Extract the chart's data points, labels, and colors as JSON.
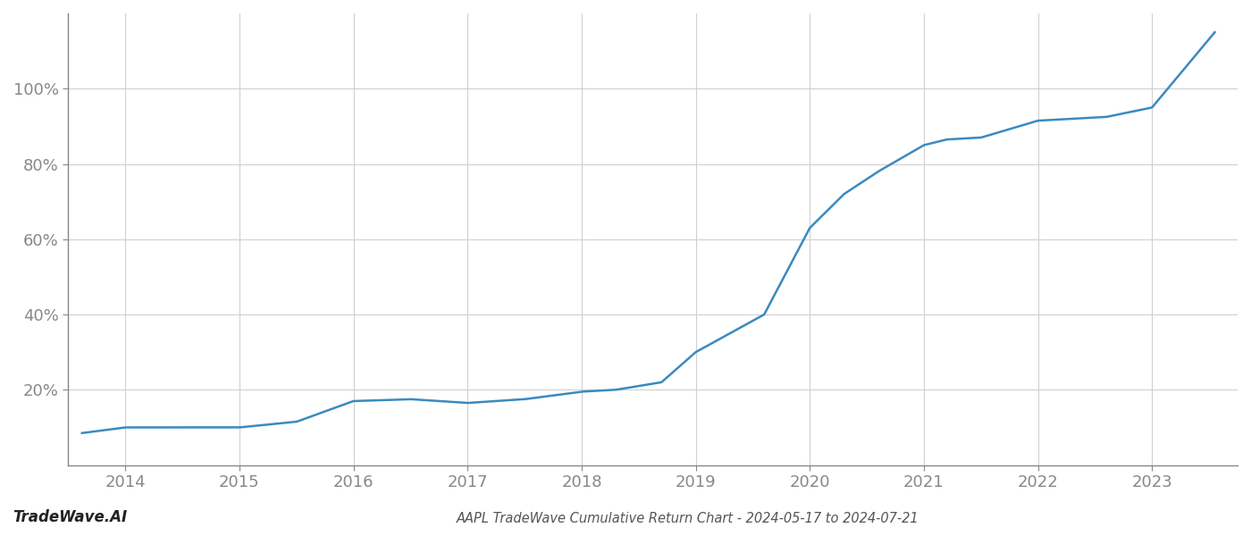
{
  "title": "AAPL TradeWave Cumulative Return Chart - 2024-05-17 to 2024-07-21",
  "watermark": "TradeWave.AI",
  "line_color": "#3a8abf",
  "background_color": "#ffffff",
  "grid_color": "#d0d0d0",
  "x_years": [
    2013.62,
    2014.0,
    2014.5,
    2015.0,
    2015.5,
    2016.0,
    2016.5,
    2017.0,
    2017.5,
    2018.0,
    2018.3,
    2018.7,
    2019.0,
    2019.3,
    2019.6,
    2020.0,
    2020.3,
    2020.6,
    2021.0,
    2021.2,
    2021.5,
    2022.0,
    2022.3,
    2022.6,
    2023.0,
    2023.55
  ],
  "y_values": [
    8.5,
    10.0,
    10.0,
    10.0,
    11.5,
    17.0,
    17.5,
    16.5,
    17.5,
    19.5,
    20.0,
    22.0,
    30.0,
    35.0,
    40.0,
    63.0,
    72.0,
    78.0,
    85.0,
    86.5,
    87.0,
    91.5,
    92.0,
    92.5,
    95.0,
    115.0
  ],
  "xlim": [
    2013.5,
    2023.75
  ],
  "ylim": [
    0,
    120
  ],
  "yticks": [
    20,
    40,
    60,
    80,
    100
  ],
  "xticks": [
    2014,
    2015,
    2016,
    2017,
    2018,
    2019,
    2020,
    2021,
    2022,
    2023
  ],
  "title_fontsize": 10.5,
  "watermark_fontsize": 12,
  "tick_fontsize": 13,
  "line_width": 1.8,
  "spine_color": "#888888",
  "tick_color": "#888888"
}
